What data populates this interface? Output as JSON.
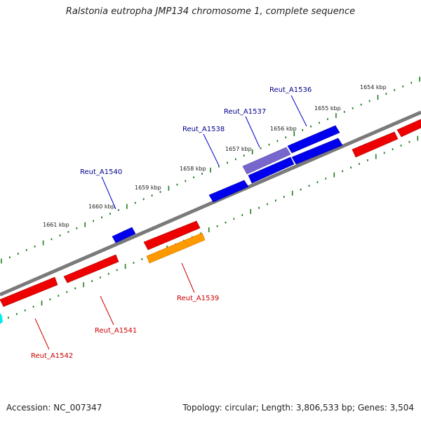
{
  "title": "Ralstonia eutropha JMP134 chromosome 1, complete sequence",
  "footer": {
    "accession": "Accession: NC_007347",
    "topology": "Topology: circular; Length: 3,806,533 bp; Genes: 3,504"
  },
  "colors": {
    "backbone": "#7a7a7a",
    "tick": "#1f7a1f",
    "forward_gene": "#0000ee",
    "forward_gene_light": "#7766cc",
    "reverse_gene": "#ee0000",
    "orange_gene": "#ff9900",
    "cyan_gene": "#00eeee",
    "forward_label": "#00008b",
    "reverse_label": "#cc0000"
  },
  "kbp_ticks": [
    "1654 kbp",
    "1655 kbp",
    "1656 kbp",
    "1657 kbp",
    "1658 kbp",
    "1659 kbp",
    "1660 kbp",
    "1661 kbp"
  ],
  "gene_labels": {
    "forward": [
      "Reut_A1536",
      "Reut_A1537",
      "Reut_A1538",
      "Reut_A1540"
    ],
    "reverse": [
      "Reut_A1539",
      "Reut_A1541",
      "Reut_A1542"
    ]
  }
}
